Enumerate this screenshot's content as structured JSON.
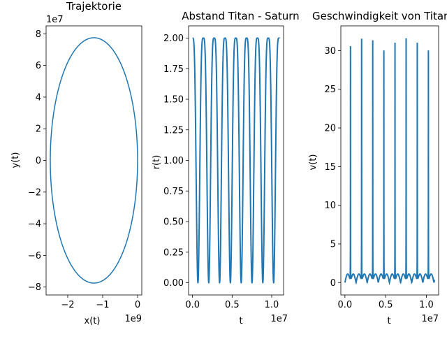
{
  "chart_data": [
    {
      "type": "line",
      "title": "Trajektorie",
      "xlabel": "x(t)",
      "ylabel": "y(t)",
      "x_offset_label": "1e9",
      "y_offset_label": "1e7",
      "xlim": [
        -2.62,
        0.12
      ],
      "ylim": [
        -8.5,
        8.5
      ],
      "xticks": [
        -2,
        -1,
        0
      ],
      "xtick_labels": [
        "−2",
        "−1",
        "0"
      ],
      "yticks": [
        -8,
        -6,
        -4,
        -2,
        0,
        2,
        4,
        6,
        8
      ],
      "ytick_labels": [
        "−8",
        "−6",
        "−4",
        "−2",
        "0",
        "2",
        "4",
        "6",
        "8"
      ],
      "color": "#1f77b4",
      "series": [
        {
          "shape": "ellipse",
          "x_center": -1.25,
          "x_semi_axis": 1.25,
          "y_center": 0,
          "y_semi_axis": 7.75
        }
      ]
    },
    {
      "type": "line",
      "title": "Abstand Titan - Saturn",
      "xlabel": "t",
      "ylabel": "r(t)",
      "x_offset_label": "1e7",
      "xlim": [
        -0.05,
        1.15
      ],
      "ylim": [
        -0.1,
        2.1
      ],
      "xticks": [
        0,
        0.5,
        1.0
      ],
      "xtick_labels": [
        "0.0",
        "0.5",
        "1.0"
      ],
      "yticks": [
        0,
        0.25,
        0.5,
        0.75,
        1.0,
        1.25,
        1.5,
        1.75,
        2.0
      ],
      "ytick_labels": [
        "0.00",
        "0.25",
        "0.50",
        "0.75",
        "1.00",
        "1.25",
        "1.50",
        "1.75",
        "2.00"
      ],
      "color": "#1f77b4",
      "periodic": {
        "t_max": 1.1,
        "period": 0.1366,
        "first_minimum": 0.0683,
        "max_value": 2.0,
        "min_value": 0.0
      }
    },
    {
      "type": "line",
      "title": "Geschwindigkeit von Titan",
      "xlabel": "t",
      "ylabel": "v(t)",
      "x_offset_label": "1e7",
      "xlim": [
        -0.05,
        1.15
      ],
      "ylim": [
        -1.6,
        33.2
      ],
      "xticks": [
        0,
        0.5,
        1.0
      ],
      "xtick_labels": [
        "0.0",
        "0.5",
        "1.0"
      ],
      "yticks": [
        0,
        5,
        10,
        15,
        20,
        25,
        30
      ],
      "ytick_labels": [
        "0",
        "5",
        "10",
        "15",
        "20",
        "25",
        "30"
      ],
      "color": "#1f77b4",
      "periodic": {
        "t_max": 1.1,
        "period": 0.1366,
        "first_peak": 0.0683,
        "peak_value": 31.6,
        "base_value": 0.0
      }
    }
  ]
}
